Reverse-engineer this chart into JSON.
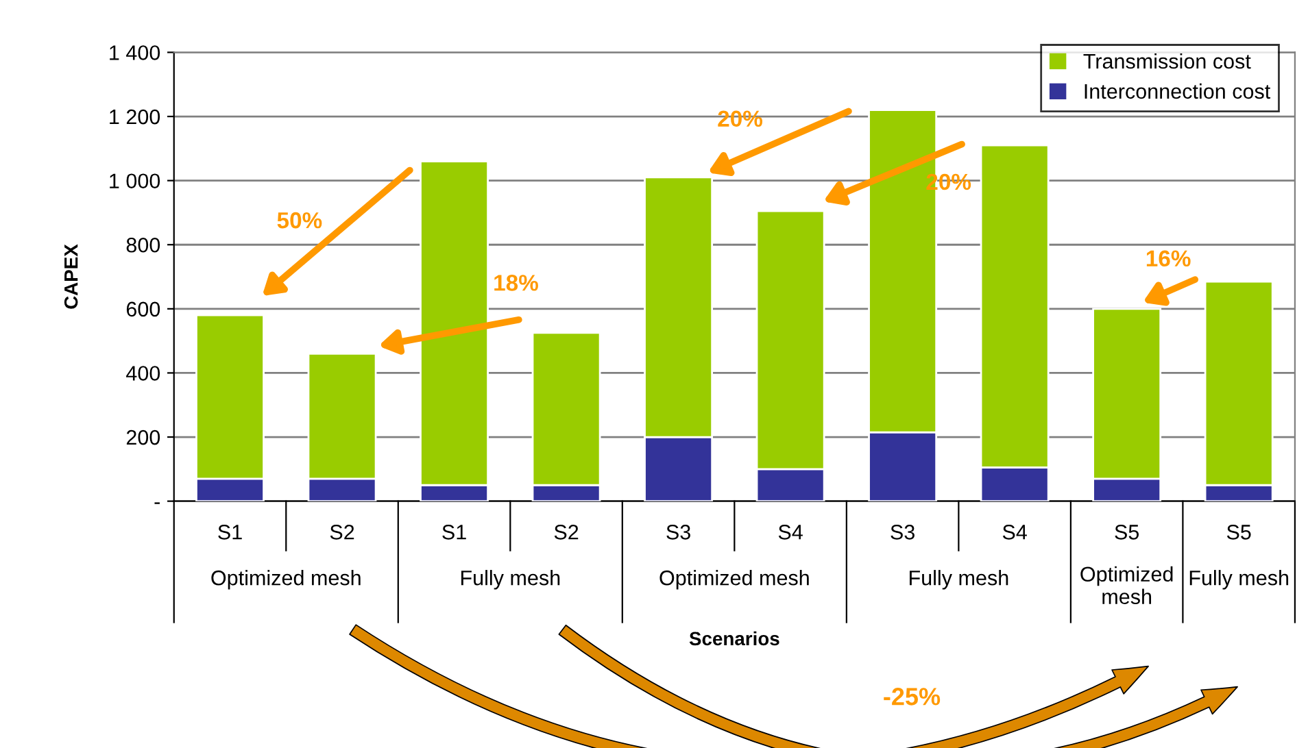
{
  "chart_data": {
    "type": "bar",
    "stacked": true,
    "ylabel": "CAPEX",
    "xlabel": "Scenarios",
    "categories": [
      "S1",
      "S2",
      "S1",
      "S2",
      "S3",
      "S4",
      "S3",
      "S4",
      "S5",
      "S5"
    ],
    "series": [
      {
        "name": "Interconnection cost",
        "color": "#333399",
        "values": [
          70,
          70,
          50,
          50,
          200,
          100,
          215,
          105,
          70,
          50
        ]
      },
      {
        "name": "Transmission cost",
        "color": "#99cc00",
        "values": [
          510,
          390,
          1010,
          475,
          810,
          805,
          1005,
          1005,
          530,
          635
        ]
      }
    ],
    "ylim": [
      0,
      1400
    ],
    "yticks": [
      {
        "value": 0,
        "label": "-"
      },
      200,
      400,
      600,
      800,
      {
        "value": 1000,
        "label": "1 000"
      },
      {
        "value": 1200,
        "label": "1 200"
      },
      {
        "value": 1400,
        "label": "1 400"
      }
    ],
    "grid": "y",
    "legend": "top right",
    "annotations": [
      "Optimized mesh",
      "Fully mesh",
      "Optimized mesh",
      "Fully mesh",
      "Optimized mesh",
      "Fully mesh",
      "50%",
      "18%",
      "20%",
      "20%",
      "16%",
      "-25%"
    ]
  }
}
